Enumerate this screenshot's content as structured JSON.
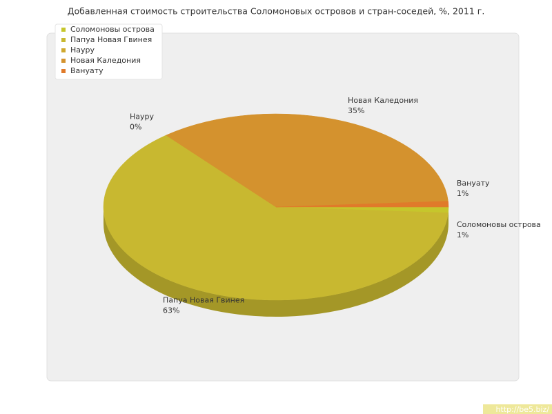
{
  "chart_data": {
    "type": "pie3d",
    "title": "Добавленная стоимость строительства Соломоновых островов и стран-соседей, %, 2011 г.",
    "categories": [
      "Соломоновы острова",
      "Папуа Новая Гвинея",
      "Науру",
      "Новая Каледония",
      "Вануату"
    ],
    "values": [
      1,
      63,
      0,
      35,
      1
    ],
    "value_labels": [
      "1%",
      "63%",
      "0%",
      "35%",
      "1%"
    ],
    "colors": [
      "#c6c62c",
      "#c8b830",
      "#cfa82e",
      "#d4922e",
      "#e07a2a"
    ],
    "legend": "top-left",
    "watermark": "http://be5.biz/"
  }
}
